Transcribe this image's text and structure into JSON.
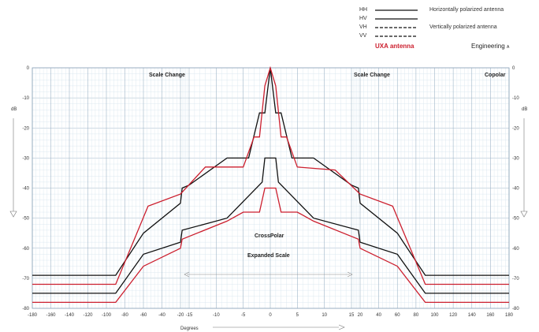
{
  "legend": {
    "entries": [
      {
        "code": "HH",
        "style": "solid"
      },
      {
        "code": "HV",
        "style": "solid"
      },
      {
        "code": "VH",
        "style": "dashed"
      },
      {
        "code": "VV",
        "style": "dashed"
      }
    ],
    "desc_horizontal": "Horizontally polarized antenna",
    "desc_vertical": "Vertically polarized antenna",
    "product": "UXA antenna",
    "product_color": "#cc1f2e",
    "engineering": "Engineering",
    "engineering_mark": "A"
  },
  "chart_data": {
    "type": "line",
    "title": "",
    "xlabel": "Degrees",
    "ylabel": "dB",
    "ylim": [
      -80,
      0
    ],
    "grid": true,
    "y_ticks": [
      0,
      -10,
      -20,
      -30,
      -40,
      -50,
      -60,
      -70,
      -80
    ],
    "x_tick_labels": [
      "-180",
      "-160",
      "-140",
      "-120",
      "-100",
      "-80",
      "-60",
      "-40",
      "-20",
      "-15",
      "-10",
      "-5",
      "0",
      "5",
      "10",
      "15",
      "20",
      "40",
      "60",
      "80",
      "100",
      "120",
      "140",
      "160",
      "180"
    ],
    "annotations": {
      "scale_change_left": "Scale Change",
      "scale_change_right": "Scale Change",
      "copolar": "Copolar",
      "crosspolar": "CrossPolar",
      "expanded_scale": "Expanded Scale"
    },
    "series": [
      {
        "color": "#111111",
        "dash": "solid",
        "x": [
          -180,
          -90,
          -60,
          -20,
          -19,
          -15,
          -8,
          -4,
          -2,
          -1,
          0,
          1,
          2,
          4,
          8,
          15,
          19,
          20,
          60,
          90,
          180
        ],
        "y": [
          -69,
          -69,
          -55,
          -45,
          -40,
          -39,
          -30,
          -30,
          -15,
          -15,
          0,
          -15,
          -15,
          -30,
          -30,
          -39,
          -40,
          -45,
          -55,
          -69,
          -69
        ]
      },
      {
        "color": "#cc1f2e",
        "dash": "solid",
        "x": [
          -180,
          -90,
          -55,
          -20,
          -12,
          -5,
          -3,
          -2,
          -1,
          0,
          1,
          2,
          3,
          5,
          12,
          20,
          55,
          90,
          180
        ],
        "y": [
          -72,
          -72,
          -46,
          -42,
          -33,
          -33,
          -23,
          -23,
          -6,
          0,
          -6,
          -23,
          -23,
          -33,
          -34,
          -42,
          -46,
          -72,
          -72
        ]
      },
      {
        "color": "#111111",
        "dash": "solid",
        "x": [
          -180,
          -90,
          -60,
          -20,
          -19,
          -8,
          -1.5,
          -1,
          -0.5,
          0,
          0.5,
          1,
          1.5,
          8,
          19,
          20,
          60,
          90,
          180
        ],
        "y": [
          -75,
          -75,
          -62,
          -58,
          -54,
          -50,
          -38,
          -30,
          -30,
          -30,
          -30,
          -30,
          -38,
          -50,
          -54,
          -58,
          -62,
          -75,
          -75
        ]
      },
      {
        "color": "#cc1f2e",
        "dash": "solid",
        "x": [
          -180,
          -90,
          -60,
          -20,
          -19,
          -8,
          -5,
          -2,
          -1,
          0,
          1,
          2,
          5,
          8,
          19,
          20,
          60,
          90,
          180
        ],
        "y": [
          -78,
          -78,
          -66,
          -60,
          -57,
          -51,
          -48,
          -48,
          -40,
          -40,
          -40,
          -48,
          -48,
          -51,
          -57,
          -60,
          -66,
          -78,
          -78
        ]
      }
    ]
  }
}
